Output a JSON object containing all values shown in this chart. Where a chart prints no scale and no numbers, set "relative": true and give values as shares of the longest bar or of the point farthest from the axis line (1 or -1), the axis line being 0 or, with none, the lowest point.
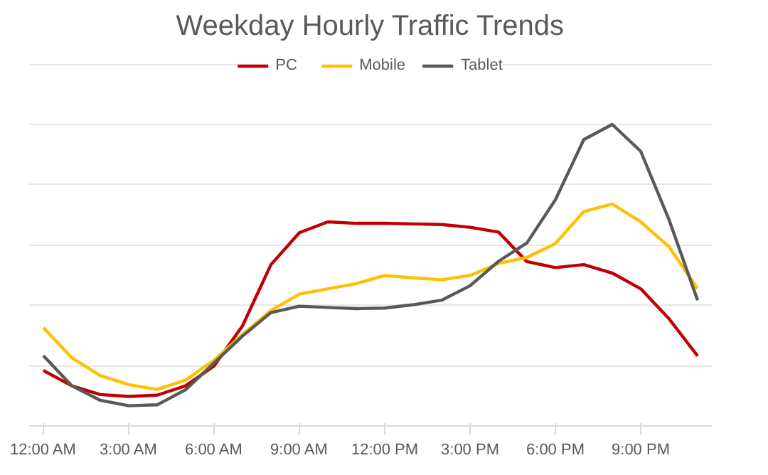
{
  "chart_data": {
    "type": "line",
    "title": "Weekday Hourly Traffic Trends",
    "relative": true,
    "grid": "y",
    "legend": "top",
    "line_style": "solid",
    "categories": [
      "12:00 AM",
      null,
      null,
      "3:00 AM",
      null,
      null,
      "6:00 AM",
      null,
      null,
      "9:00 AM",
      null,
      null,
      "12:00 PM",
      null,
      null,
      "3:00 PM",
      null,
      null,
      "6:00 PM",
      null,
      null,
      "9:00 PM",
      null,
      null
    ],
    "series": [
      {
        "name": "PC",
        "color": "#c00000",
        "values": [
          0.184,
          0.133,
          0.104,
          0.098,
          0.102,
          0.133,
          0.199,
          0.332,
          0.535,
          0.641,
          0.677,
          0.672,
          0.672,
          0.67,
          0.668,
          0.659,
          0.643,
          0.545,
          0.525,
          0.535,
          0.507,
          0.455,
          0.355,
          0.232
        ]
      },
      {
        "name": "Mobile",
        "color": "#ffc000",
        "values": [
          0.326,
          0.226,
          0.167,
          0.137,
          0.121,
          0.152,
          0.218,
          0.303,
          0.383,
          0.437,
          0.455,
          0.472,
          0.499,
          0.491,
          0.485,
          0.499,
          0.539,
          0.559,
          0.605,
          0.711,
          0.736,
          0.677,
          0.594,
          0.455
        ]
      },
      {
        "name": "Tablet",
        "color": "#595959",
        "values": [
          0.233,
          0.133,
          0.085,
          0.067,
          0.07,
          0.12,
          0.209,
          0.298,
          0.376,
          0.397,
          0.393,
          0.389,
          0.391,
          0.402,
          0.417,
          0.465,
          0.546,
          0.607,
          0.75,
          0.95,
          1.0,
          0.911,
          0.683,
          0.417
        ]
      }
    ]
  }
}
